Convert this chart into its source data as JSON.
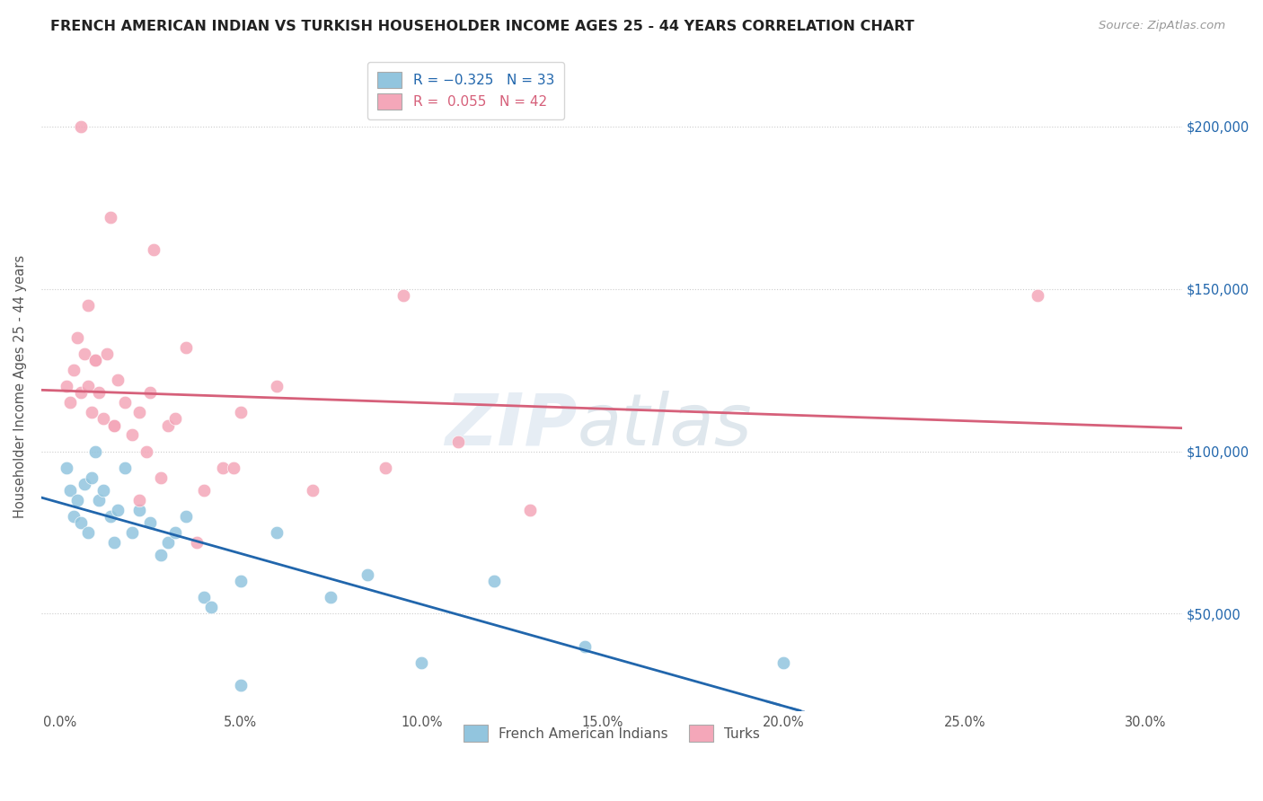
{
  "title": "FRENCH AMERICAN INDIAN VS TURKISH HOUSEHOLDER INCOME AGES 25 - 44 YEARS CORRELATION CHART",
  "source": "Source: ZipAtlas.com",
  "ylabel": "Householder Income Ages 25 - 44 years",
  "xlabel_vals": [
    0.0,
    5.0,
    10.0,
    15.0,
    20.0,
    25.0,
    30.0
  ],
  "ytick_labels": [
    "$50,000",
    "$100,000",
    "$150,000",
    "$200,000"
  ],
  "ytick_vals": [
    50000,
    100000,
    150000,
    200000
  ],
  "right_ytick_labels": [
    "$50,000",
    "$100,000",
    "$150,000",
    "$200,000"
  ],
  "xlim": [
    -0.5,
    31.0
  ],
  "ylim": [
    20000,
    220000
  ],
  "blue_color": "#92c5de",
  "pink_color": "#f4a7b9",
  "blue_line_color": "#2166ac",
  "pink_line_color": "#d6607a",
  "blue_scatter_x": [
    0.2,
    0.3,
    0.4,
    0.5,
    0.6,
    0.7,
    0.8,
    0.9,
    1.0,
    1.1,
    1.2,
    1.4,
    1.5,
    1.6,
    1.8,
    2.0,
    2.2,
    2.5,
    2.8,
    3.0,
    3.2,
    3.5,
    4.0,
    4.2,
    5.0,
    6.0,
    7.5,
    8.5,
    10.0,
    12.0,
    14.5,
    20.0,
    5.0
  ],
  "blue_scatter_y": [
    95000,
    88000,
    80000,
    85000,
    78000,
    90000,
    75000,
    92000,
    100000,
    85000,
    88000,
    80000,
    72000,
    82000,
    95000,
    75000,
    82000,
    78000,
    68000,
    72000,
    75000,
    80000,
    55000,
    52000,
    60000,
    75000,
    55000,
    62000,
    35000,
    60000,
    40000,
    35000,
    28000
  ],
  "pink_scatter_x": [
    0.2,
    0.3,
    0.4,
    0.5,
    0.6,
    0.7,
    0.8,
    0.9,
    1.0,
    1.1,
    1.2,
    1.3,
    1.5,
    1.6,
    1.8,
    2.0,
    2.2,
    2.4,
    2.5,
    2.8,
    3.0,
    3.2,
    3.5,
    4.0,
    4.5,
    5.0,
    6.0,
    7.0,
    9.0,
    11.0,
    13.0,
    4.8,
    1.4,
    2.6,
    3.8,
    0.6,
    27.0,
    0.8,
    1.0,
    1.5,
    2.2,
    9.5
  ],
  "pink_scatter_y": [
    120000,
    115000,
    125000,
    135000,
    118000,
    130000,
    120000,
    112000,
    128000,
    118000,
    110000,
    130000,
    108000,
    122000,
    115000,
    105000,
    112000,
    100000,
    118000,
    92000,
    108000,
    110000,
    132000,
    88000,
    95000,
    112000,
    120000,
    88000,
    95000,
    103000,
    82000,
    95000,
    172000,
    162000,
    72000,
    200000,
    148000,
    145000,
    128000,
    108000,
    85000,
    148000
  ]
}
